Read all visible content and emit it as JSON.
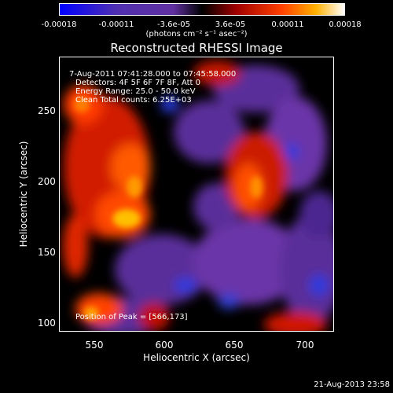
{
  "colorbar": {
    "ticks": [
      "-0.00018",
      "-0.00011",
      "-3.6e-05",
      "3.6e-05",
      "0.00011",
      "0.00018"
    ],
    "units": "(photons cm⁻² s⁻¹ asec⁻²)"
  },
  "plot": {
    "title": "Reconstructed RHESSI Image",
    "info_lines": [
      " 7-Aug-2011 07:41:28.000 to 07:45:58.000",
      "Detectors: 4F 5F 6F 7F 8F, Att 0",
      "Energy Range: 25.0 - 50.0 keV",
      "Clean    Total counts: 6.25E+03"
    ],
    "peak_label": "Position of Peak = [566,173]",
    "xlabel": "Heliocentric X (arcsec)",
    "ylabel": "Heliocentric Y (arcsec)",
    "xticks": [
      "550",
      "600",
      "650",
      "700"
    ],
    "yticks": [
      "100",
      "150",
      "200",
      "250"
    ]
  },
  "chart_data": {
    "type": "heatmap",
    "title": "Reconstructed RHESSI Image",
    "xlabel": "Heliocentric X (arcsec)",
    "ylabel": "Heliocentric Y (arcsec)",
    "xlim": [
      525,
      720
    ],
    "ylim": [
      95,
      290
    ],
    "value_range": [
      -0.00018,
      0.00018
    ],
    "peak": [
      566,
      173
    ],
    "colormap": [
      "#0000ff",
      "#5a2d9a",
      "#7e3fae",
      "#000000",
      "#b00000",
      "#ff3c00",
      "#ff9a00",
      "#ffe040",
      "#ffffff"
    ]
  },
  "footer": {
    "date": "21-Aug-2013 23:58"
  }
}
